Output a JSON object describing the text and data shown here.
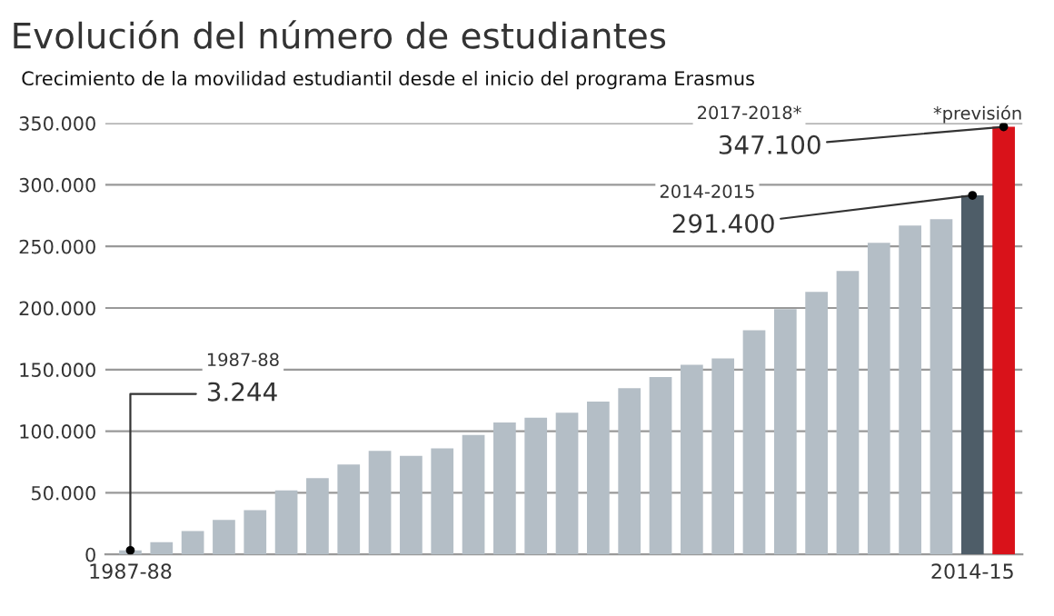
{
  "chart_data": {
    "type": "bar",
    "title": "Evolución del número de estudiantes",
    "subtitle": "Crecimiento de la movilidad estudiantil desde el inicio del programa Erasmus",
    "categories": [
      "1987-88",
      null,
      null,
      null,
      null,
      null,
      null,
      null,
      null,
      null,
      null,
      null,
      null,
      null,
      null,
      null,
      null,
      null,
      null,
      null,
      null,
      null,
      null,
      null,
      null,
      null,
      null,
      "2014-15",
      null
    ],
    "values": [
      3244,
      10000,
      19000,
      28000,
      36000,
      52000,
      62000,
      73000,
      84000,
      80000,
      86000,
      97000,
      107000,
      111000,
      115000,
      124000,
      135000,
      144000,
      154000,
      159000,
      182000,
      199000,
      213000,
      230000,
      253000,
      267000,
      272000,
      291400,
      347100
    ],
    "colors": [
      "#b4bec6",
      "#b4bec6",
      "#b4bec6",
      "#b4bec6",
      "#b4bec6",
      "#b4bec6",
      "#b4bec6",
      "#b4bec6",
      "#b4bec6",
      "#b4bec6",
      "#b4bec6",
      "#b4bec6",
      "#b4bec6",
      "#b4bec6",
      "#b4bec6",
      "#b4bec6",
      "#b4bec6",
      "#b4bec6",
      "#b4bec6",
      "#b4bec6",
      "#b4bec6",
      "#b4bec6",
      "#b4bec6",
      "#b4bec6",
      "#b4bec6",
      "#b4bec6",
      "#b4bec6",
      "#4e5d68",
      "#d9121a"
    ],
    "value_labels": [
      "3.244",
      null,
      null,
      null,
      null,
      null,
      null,
      null,
      null,
      null,
      null,
      null,
      null,
      null,
      null,
      null,
      null,
      null,
      null,
      null,
      null,
      null,
      null,
      null,
      null,
      null,
      null,
      "291.400",
      "347.100"
    ],
    "annotations": [
      "1987-88",
      "2014-2015",
      "2017-2018*",
      "*previsión"
    ],
    "ylim": [
      0,
      350000
    ],
    "yticks": [
      0,
      {
        "value": 50000,
        "label": "50.000"
      },
      {
        "value": 100000,
        "label": "100.000"
      },
      {
        "value": 150000,
        "label": "150.000"
      },
      {
        "value": 200000,
        "label": "200.000"
      },
      {
        "value": 250000,
        "label": "250.000"
      },
      {
        "value": 300000,
        "label": "300.000"
      },
      {
        "value": 350000,
        "label": "350.000"
      }
    ],
    "grid": "y"
  }
}
